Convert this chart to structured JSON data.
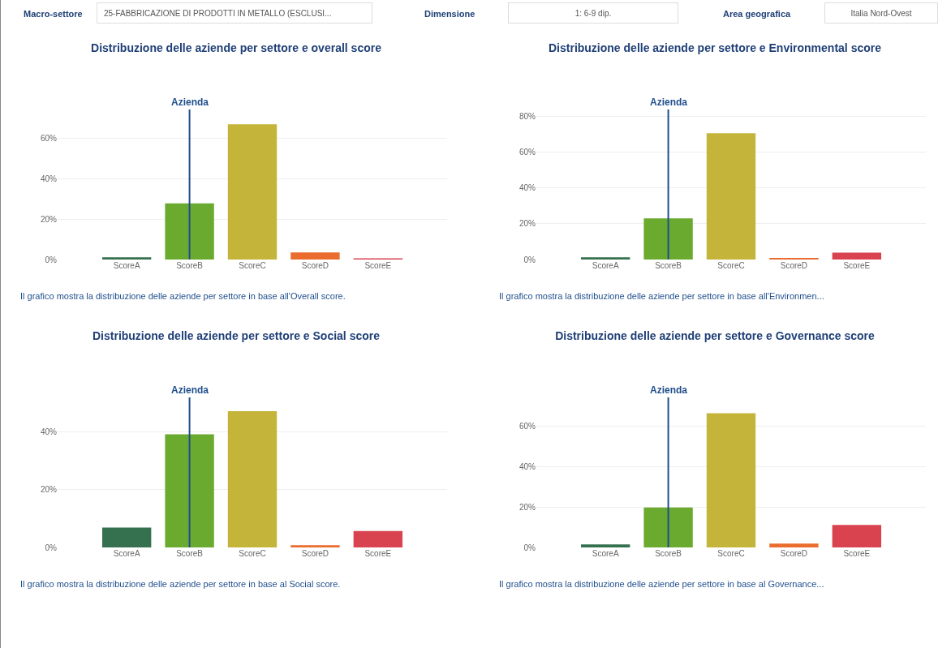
{
  "chart_data": [
    {
      "type": "other",
      "annotations": [
        "Macro-settore",
        "25-FABBRICAZIONE DI PRODOTTI IN METALLO (ESCLUSI...",
        "Dimensione",
        "1: 6-9 dip.",
        "Area geografica",
        "Italia Nord-Ovest"
      ]
    },
    {
      "type": "bar",
      "title": "Distribuzione delle aziende per settore e overall score",
      "categories": [
        "ScoreA",
        "ScoreB",
        "ScoreC",
        "ScoreD",
        "ScoreE"
      ],
      "values": [
        1.1,
        27.7,
        66.7,
        3.5,
        0.6
      ],
      "colors": [
        "#35704f",
        "#6aaa2e",
        "#c5b43a",
        "#ea6c2e",
        "#d9434f"
      ],
      "ylim": [
        0,
        74
      ],
      "yticks": [
        {
          "value": 0,
          "label": "0%"
        },
        {
          "value": 20,
          "label": "20%"
        },
        {
          "value": 40,
          "label": "40%"
        },
        {
          "value": 60,
          "label": "60%"
        }
      ],
      "grid": "y",
      "ref_lines": [
        {
          "axis": "x",
          "value": "ScoreB",
          "label": "Azienda",
          "color": "#1f4e8c"
        }
      ],
      "annotations": [
        "Il grafico mostra la distribuzione delle aziende per settore in base all'Overall score."
      ]
    },
    {
      "type": "bar",
      "title": "Distribuzione delle aziende per settore e Environmental score",
      "categories": [
        "ScoreA",
        "ScoreB",
        "ScoreC",
        "ScoreD",
        "ScoreE"
      ],
      "values": [
        1.2,
        23,
        70.7,
        0.9,
        3.9
      ],
      "colors": [
        "#35704f",
        "#6aaa2e",
        "#c5b43a",
        "#ea6c2e",
        "#d9434f"
      ],
      "ylim": [
        0,
        84
      ],
      "yticks": [
        {
          "value": 0,
          "label": "0%"
        },
        {
          "value": 20,
          "label": "20%"
        },
        {
          "value": 40,
          "label": "40%"
        },
        {
          "value": 60,
          "label": "60%"
        },
        {
          "value": 80,
          "label": "80%"
        }
      ],
      "grid": "y",
      "ref_lines": [
        {
          "axis": "x",
          "value": "ScoreB",
          "label": "Azienda",
          "color": "#1f4e8c"
        }
      ],
      "annotations": [
        "Il grafico mostra la distribuzione delle aziende per settore in base all'Environmen..."
      ]
    },
    {
      "type": "bar",
      "title": "Distribuzione delle aziende per settore e Social score",
      "categories": [
        "ScoreA",
        "ScoreB",
        "ScoreC",
        "ScoreD",
        "ScoreE"
      ],
      "values": [
        6.9,
        39.2,
        47.2,
        0.8,
        5.7
      ],
      "colors": [
        "#35704f",
        "#6aaa2e",
        "#c5b43a",
        "#ea6c2e",
        "#d9434f"
      ],
      "ylim": [
        0,
        52
      ],
      "yticks": [
        {
          "value": 0,
          "label": "0%"
        },
        {
          "value": 20,
          "label": "20%"
        },
        {
          "value": 40,
          "label": "40%"
        }
      ],
      "grid": "y",
      "ref_lines": [
        {
          "axis": "x",
          "value": "ScoreB",
          "label": "Azienda",
          "color": "#1f4e8c"
        }
      ],
      "annotations": [
        "Il grafico mostra la distribuzione delle aziende per settore in base al Social score."
      ]
    },
    {
      "type": "bar",
      "title": "Distribuzione delle aziende per settore e Governance score",
      "categories": [
        "ScoreA",
        "ScoreB",
        "ScoreC",
        "ScoreD",
        "ScoreE"
      ],
      "values": [
        1.5,
        19.7,
        66.2,
        1.9,
        11.1
      ],
      "colors": [
        "#35704f",
        "#6aaa2e",
        "#c5b43a",
        "#ea6c2e",
        "#d9434f"
      ],
      "ylim": [
        0,
        74
      ],
      "yticks": [
        {
          "value": 0,
          "label": "0%"
        },
        {
          "value": 20,
          "label": "20%"
        },
        {
          "value": 40,
          "label": "40%"
        },
        {
          "value": 60,
          "label": "60%"
        }
      ],
      "grid": "y",
      "ref_lines": [
        {
          "axis": "x",
          "value": "ScoreB",
          "label": "Azienda",
          "color": "#1f4e8c"
        }
      ],
      "annotations": [
        "Il grafico mostra la distribuzione delle aziende per settore in base al Governance..."
      ]
    }
  ]
}
